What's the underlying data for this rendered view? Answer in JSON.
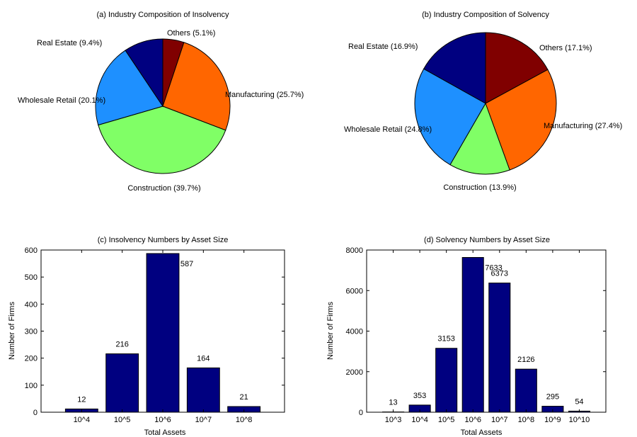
{
  "chart_data": [
    {
      "type": "pie",
      "title": "(a) Industry Composition of Insolvency",
      "slices": [
        {
          "label": "Others (5.1%)",
          "value": 5.1,
          "color": "#800000"
        },
        {
          "label": "Manufacturing (25.7%)",
          "value": 25.7,
          "color": "#ff6600"
        },
        {
          "label": "Construction (39.7%)",
          "value": 39.7,
          "color": "#80ff66"
        },
        {
          "label": "Wholesale Retail (20.1%)",
          "value": 20.1,
          "color": "#1e90ff"
        },
        {
          "label": "Real Estate (9.4%)",
          "value": 9.4,
          "color": "#000080"
        }
      ]
    },
    {
      "type": "pie",
      "title": "(b) Industry Composition of Solvency",
      "slices": [
        {
          "label": "Others (17.1%)",
          "value": 17.1,
          "color": "#800000"
        },
        {
          "label": "Manufacturing (27.4%)",
          "value": 27.4,
          "color": "#ff6600"
        },
        {
          "label": "Construction (13.9%)",
          "value": 13.9,
          "color": "#80ff66"
        },
        {
          "label": "Wholesale Retail (24.8%)",
          "value": 24.8,
          "color": "#1e90ff"
        },
        {
          "label": "Real Estate (16.9%)",
          "value": 16.9,
          "color": "#000080"
        }
      ]
    },
    {
      "type": "bar",
      "title": "(c) Insolvency Numbers by Asset Size",
      "xlabel": "Total Assets",
      "ylabel": "Number of Firms",
      "categories": [
        "10^4",
        "10^5",
        "10^6",
        "10^7",
        "10^8"
      ],
      "values": [
        12,
        216,
        587,
        164,
        21
      ],
      "ylim": [
        0,
        600
      ],
      "yticks": [
        0,
        100,
        200,
        300,
        400,
        500,
        600
      ],
      "bar_color": "#000080"
    },
    {
      "type": "bar",
      "title": "(d) Solvency Numbers by Asset Size",
      "xlabel": "Total Assets",
      "ylabel": "Number of Firms",
      "categories": [
        "10^3",
        "10^4",
        "10^5",
        "10^6",
        "10^7",
        "10^8",
        "10^9",
        "10^10"
      ],
      "values": [
        13,
        353,
        3153,
        7633,
        6373,
        2126,
        295,
        54
      ],
      "ylim": [
        0,
        8000
      ],
      "yticks": [
        0,
        2000,
        4000,
        6000,
        8000
      ],
      "bar_color": "#000080"
    }
  ]
}
